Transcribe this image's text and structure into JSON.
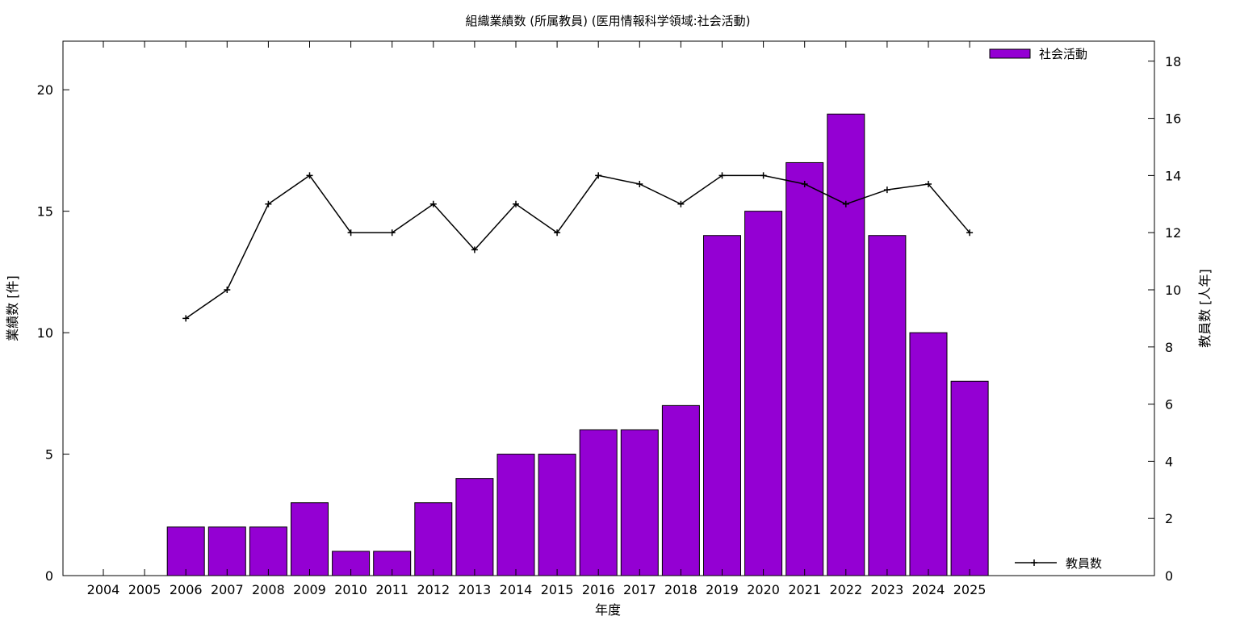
{
  "chart_data": {
    "type": "bar",
    "title": "組織業績数 (所属教員) (医用情報科学領域:社会活動)",
    "xlabel": "年度",
    "ylabel": "業績数 [件]",
    "y2label": "教員数 [人年]",
    "categories": [
      "2004",
      "2005",
      "2006",
      "2007",
      "2008",
      "2009",
      "2010",
      "2011",
      "2012",
      "2013",
      "2014",
      "2015",
      "2016",
      "2017",
      "2018",
      "2019",
      "2020",
      "2021",
      "2022",
      "2023",
      "2024",
      "2025"
    ],
    "series": [
      {
        "name": "社会活動",
        "type": "bar",
        "axis": "left",
        "color": "#9400d3",
        "values": [
          0,
          0,
          2,
          2,
          2,
          3,
          1,
          1,
          3,
          4,
          5,
          5,
          6,
          6,
          7,
          14,
          15,
          17,
          19,
          14,
          10,
          8
        ]
      },
      {
        "name": "教員数",
        "type": "line",
        "axis": "right",
        "color": "#000000",
        "values": [
          null,
          null,
          9,
          10,
          13,
          14,
          12,
          12,
          13,
          11.4,
          13,
          12,
          14,
          13.7,
          13,
          14,
          14,
          13.7,
          13,
          13.5,
          13.7,
          12
        ]
      }
    ],
    "ylim": [
      0,
      22
    ],
    "y2lim": [
      0,
      18.7
    ],
    "yticks": [
      0,
      5,
      10,
      15,
      20
    ],
    "y2ticks": [
      0,
      2,
      4,
      6,
      8,
      10,
      12,
      14,
      16,
      18
    ],
    "grid": false,
    "legend_position": "top-right / bottom-right"
  }
}
